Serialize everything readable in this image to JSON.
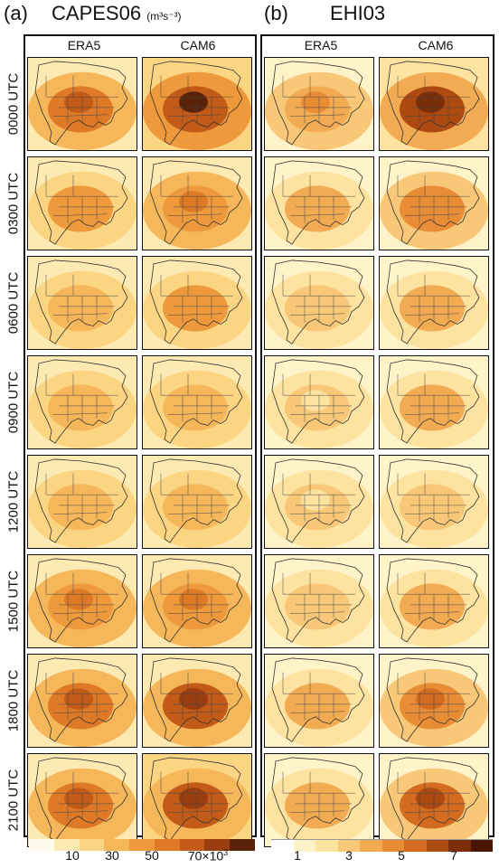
{
  "panel_a": {
    "label": "(a)",
    "title": "CAPES06",
    "units": "(m³s⁻³)",
    "col_left": "ERA5",
    "col_right": "CAM6"
  },
  "panel_b": {
    "label": "(b)",
    "title": "EHI03",
    "col_left": "ERA5",
    "col_right": "CAM6"
  },
  "rows": [
    "0000 UTC",
    "0300 UTC",
    "0600 UTC",
    "0900 UTC",
    "1200 UTC",
    "1500 UTC",
    "1800 UTC",
    "2100 UTC"
  ],
  "colorbar_a": {
    "ticks": [
      "10",
      "30",
      "50",
      "70×10"
    ],
    "tick_sup": "3",
    "colors": [
      "#fffbea",
      "#fdeab3",
      "#fbd582",
      "#f6b75a",
      "#ee9a3c",
      "#de7a27",
      "#c25a18",
      "#9a3e0f",
      "#5a2208"
    ]
  },
  "colorbar_b": {
    "ticks": [
      "1",
      "3",
      "5",
      "7"
    ],
    "colors": [
      "#ffffff",
      "#fff3c9",
      "#fde2a0",
      "#f8c878",
      "#f2ab52",
      "#e88c36",
      "#d36b20",
      "#ad4a12",
      "#7a2e0a",
      "#4a1505"
    ]
  },
  "map_intensity": {
    "capes_era5": [
      0.78,
      0.55,
      0.45,
      0.38,
      0.45,
      0.62,
      0.8,
      0.82
    ],
    "capes_cam6": [
      1.0,
      0.62,
      0.5,
      0.38,
      0.4,
      0.62,
      0.88,
      0.95
    ],
    "ehi_era5": [
      0.55,
      0.42,
      0.32,
      0.28,
      0.28,
      0.3,
      0.42,
      0.5
    ],
    "ehi_cam6": [
      0.95,
      0.62,
      0.45,
      0.42,
      0.38,
      0.45,
      0.72,
      0.82
    ]
  }
}
